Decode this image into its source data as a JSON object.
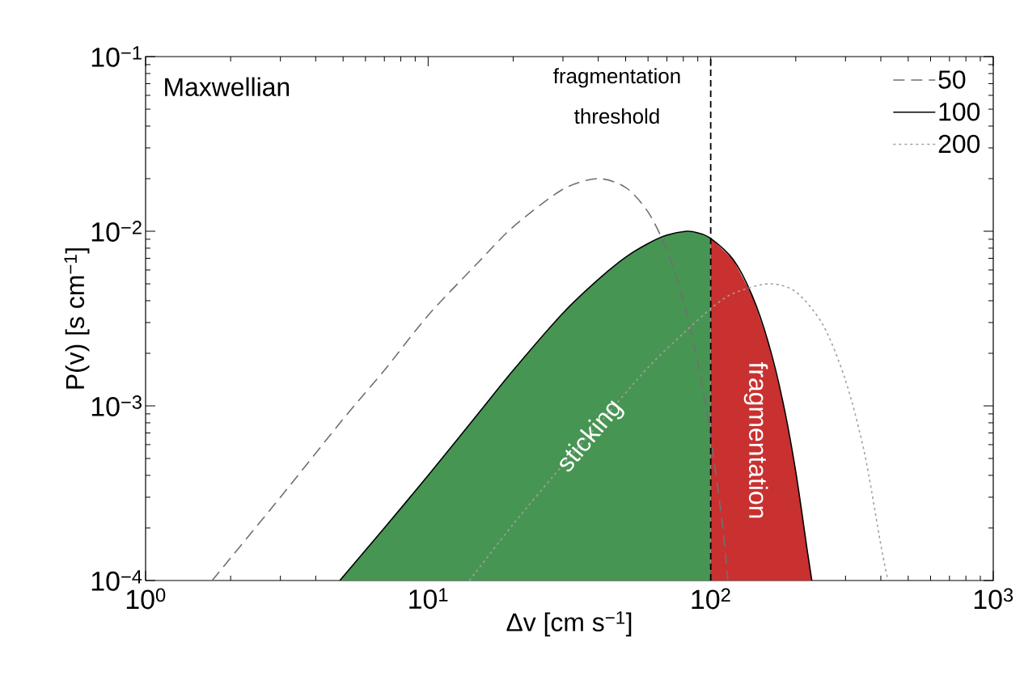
{
  "chart_data": {
    "type": "line",
    "xlabel": "Δv [cm s$^{−1}$]",
    "ylabel": "P(v) [s cm$^{−1}$]",
    "xlim": [
      1,
      1000
    ],
    "ylim": [
      0.0001,
      0.1
    ],
    "log": "xy",
    "grid": false,
    "legend": "top right",
    "xticks": [
      {
        "value": 1,
        "label": "10$^{0}$"
      },
      {
        "value": 10,
        "label": "10$^{1}$"
      },
      {
        "value": 100,
        "label": "10$^{2}$"
      },
      {
        "value": 1000,
        "label": "10$^{3}$"
      }
    ],
    "yticks": [
      {
        "value": 0.0001,
        "label": "10$^{−4}$"
      },
      {
        "value": 0.001,
        "label": "10$^{−3}$"
      },
      {
        "value": 0.01,
        "label": "10$^{−2}$"
      },
      {
        "value": 0.1,
        "label": "10$^{−1}$"
      }
    ],
    "series": [
      {
        "type": "area",
        "color": "#479553",
        "x": [
          4.87,
          7,
          10,
          15,
          20,
          30,
          40,
          50,
          60,
          70,
          82,
          90,
          100
        ],
        "values": [
          0.0001,
          0.0002,
          0.0004,
          0.0009,
          0.0016,
          0.0034,
          0.0053,
          0.0071,
          0.0085,
          0.0095,
          0.01,
          0.0098,
          0.0091
        ]
      },
      {
        "type": "area",
        "color": "#c93030",
        "x": [
          100,
          120,
          140,
          160,
          180,
          200,
          220,
          228
        ],
        "values": [
          0.0091,
          0.0069,
          0.0043,
          0.0023,
          0.00106,
          0.00042,
          0.000146,
          0.0001
        ]
      },
      {
        "name": "50",
        "color": "#707070",
        "line_style": "dashed",
        "x": [
          1.72,
          3,
          5,
          7,
          10,
          15,
          20,
          30,
          40,
          50,
          60,
          70,
          80,
          90,
          100,
          110,
          115
        ],
        "values": [
          0.0001,
          0.0003,
          0.00084,
          0.0016,
          0.0033,
          0.0066,
          0.0106,
          0.0174,
          0.02,
          0.0178,
          0.0129,
          0.0078,
          0.004,
          0.00175,
          0.00066,
          0.00021,
          0.0001
        ]
      },
      {
        "name": "100",
        "color": "#000000",
        "line_style": "solid",
        "x": [
          4.87,
          7,
          10,
          15,
          20,
          30,
          40,
          50,
          60,
          70,
          82,
          90,
          100,
          120,
          140,
          160,
          180,
          200,
          220,
          228
        ],
        "values": [
          0.0001,
          0.0002,
          0.0004,
          0.0009,
          0.0016,
          0.0034,
          0.0053,
          0.0071,
          0.0085,
          0.0095,
          0.01,
          0.0098,
          0.0091,
          0.0069,
          0.0043,
          0.0023,
          0.00106,
          0.00042,
          0.000146,
          0.0001
        ]
      },
      {
        "name": "200",
        "color": "#a0a0a0",
        "line_style": "dotted",
        "x": [
          14,
          20,
          30,
          40,
          60,
          80,
          100,
          120,
          160,
          200,
          250,
          300,
          350,
          400,
          424
        ],
        "values": [
          0.0001,
          0.00021,
          0.00046,
          0.00078,
          0.00166,
          0.0026,
          0.0036,
          0.0044,
          0.005,
          0.0045,
          0.0029,
          0.0014,
          0.00054,
          0.00016,
          0.0001
        ]
      }
    ],
    "ref_lines": [
      {
        "axis": "x",
        "value": 100,
        "label": "fragmentation threshold",
        "color": "#000000",
        "line_style": "dashed"
      }
    ],
    "annotations": [
      "Maxwellian",
      "sticking",
      "fragmentation"
    ]
  }
}
